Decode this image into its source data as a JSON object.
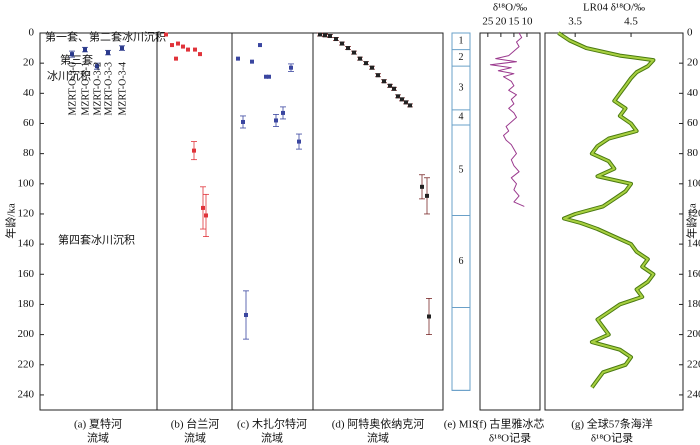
{
  "chart_data": {
    "type": "multi-panel",
    "y_label": "年龄/ka",
    "ylim": [
      0,
      250
    ],
    "yticks": [
      0,
      20,
      40,
      60,
      80,
      100,
      120,
      140,
      160,
      180,
      200,
      220,
      240
    ],
    "annotations": [
      "第一套、第二套冰川沉积",
      "第三套",
      "冰川沉积",
      "第四套冰川沉积"
    ],
    "panels": [
      {
        "type": "points",
        "label": [
          "(a) 夏特河",
          "流域"
        ],
        "color": "#2b3a8c",
        "err_color": "#2b3a8c",
        "sample_names": [
          "MZRT-O-3-0",
          "MZRT-O-3-1",
          "MZRT-O-3-2",
          "MZRT-O-3-3",
          "MZRT-O-3-4"
        ],
        "ages": [
          14,
          11,
          22,
          13,
          10
        ],
        "errors": [
          2,
          1.5,
          2,
          1.5,
          1.5
        ]
      },
      {
        "type": "points",
        "label": [
          "(b) 台兰河",
          "流域"
        ],
        "color": "#e0333a",
        "err_color": "#e0333a",
        "ages": [
          1,
          8,
          7,
          9,
          11,
          11,
          14,
          17,
          78,
          116,
          121
        ],
        "errors": [
          null,
          null,
          null,
          null,
          null,
          null,
          null,
          null,
          6,
          14,
          14
        ]
      },
      {
        "type": "points",
        "label": [
          "(c) 木扎尔特河",
          "流域"
        ],
        "color": "#3a46a0",
        "err_color": "#3a46a0",
        "ages": [
          17,
          19,
          8,
          29,
          29,
          23,
          59,
          58,
          53,
          72,
          187
        ],
        "errors": [
          null,
          null,
          null,
          null,
          null,
          2.5,
          4,
          4,
          4,
          5,
          16
        ]
      },
      {
        "type": "points",
        "label": [
          "(d) 阿特奥依纳克河",
          "流域"
        ],
        "color": "#222222",
        "err_color": "#7a2a2a",
        "ages": [
          1,
          1.5,
          2,
          4,
          7,
          10,
          13,
          17,
          20,
          23,
          28,
          32,
          35,
          37,
          42,
          44,
          46,
          48,
          102,
          108,
          188
        ],
        "errors": [
          1,
          1,
          1,
          1,
          1,
          1,
          1,
          1,
          1,
          1,
          1,
          1,
          1,
          1,
          1,
          1,
          1,
          1,
          8,
          12,
          12
        ]
      },
      {
        "type": "mis",
        "label": [
          "(e) MIS"
        ],
        "boundaries": [
          0,
          11,
          22,
          51,
          61,
          121,
          182,
          237
        ],
        "stages": [
          "1",
          "2",
          "3",
          "4",
          "5",
          "6"
        ]
      },
      {
        "type": "line",
        "label": [
          "(f) 古里雅冰芯",
          "δ¹⁸O记录"
        ],
        "x_label": "δ¹⁸O/‰",
        "color": "#9b3a8e",
        "xlim": [
          28,
          5
        ],
        "xticks": [
          25,
          20,
          15,
          10
        ],
        "ages": [
          0,
          3,
          6,
          9,
          12,
          15,
          17,
          19,
          21,
          23,
          25,
          27,
          29,
          32,
          35,
          38,
          41,
          44,
          47,
          50,
          53,
          56,
          59,
          62,
          65,
          68,
          71,
          74,
          77,
          80,
          84,
          88,
          92,
          96,
          100,
          104,
          108,
          112,
          115
        ],
        "values": [
          13,
          12,
          14,
          13,
          15,
          17,
          22,
          14,
          24,
          16,
          21,
          15,
          19,
          16,
          15,
          17,
          14,
          16,
          15,
          17,
          15,
          14,
          16,
          18,
          17,
          19,
          18,
          16,
          15,
          14,
          16,
          15,
          13,
          16,
          14,
          15,
          13,
          15,
          11
        ]
      },
      {
        "type": "line",
        "label": [
          "(g) 全球57条海洋",
          "δ¹⁸O记录"
        ],
        "x_label": "LR04 δ¹⁸O/‰",
        "color": "#a8d040",
        "edge_color": "#4a7a10",
        "xlim": [
          2.96,
          5.43
        ],
        "xticks": [
          3.5,
          4.5
        ],
        "ages": [
          0,
          5,
          10,
          15,
          18,
          22,
          26,
          30,
          35,
          40,
          45,
          50,
          55,
          60,
          65,
          70,
          75,
          80,
          85,
          90,
          95,
          100,
          105,
          110,
          115,
          120,
          123,
          126,
          130,
          135,
          140,
          145,
          150,
          155,
          160,
          165,
          170,
          175,
          180,
          185,
          190,
          195,
          200,
          205,
          210,
          215,
          220,
          225,
          230,
          235
        ],
        "values": [
          3.2,
          3.4,
          3.7,
          4.3,
          4.9,
          4.8,
          4.6,
          4.5,
          4.4,
          4.3,
          4.2,
          4.4,
          4.3,
          4.5,
          4.6,
          4.1,
          3.9,
          3.8,
          4.1,
          4.2,
          3.9,
          4.5,
          4.4,
          4.2,
          4.0,
          3.5,
          3.3,
          3.6,
          3.9,
          4.2,
          4.5,
          4.6,
          4.8,
          4.7,
          4.9,
          4.8,
          4.6,
          4.7,
          4.3,
          4.1,
          3.9,
          4.0,
          4.1,
          3.8,
          4.3,
          4.5,
          4.4,
          4.0,
          3.9,
          3.8
        ]
      }
    ]
  }
}
